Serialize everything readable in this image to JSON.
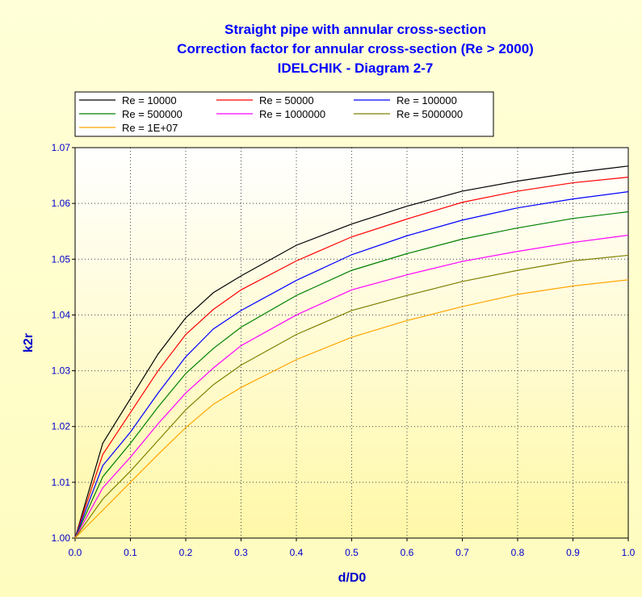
{
  "chart_data": {
    "type": "line",
    "title": [
      "Straight pipe with annular cross-section",
      "Correction factor for annular cross-section (Re > 2000)",
      "IDELCHIK - Diagram 2-7"
    ],
    "xlabel": "d/D0",
    "ylabel": "k2r",
    "x": [
      0,
      0.05,
      0.1,
      0.15,
      0.2,
      0.25,
      0.3,
      0.4,
      0.5,
      0.6,
      0.7,
      0.8,
      0.9,
      1.0
    ],
    "series": [
      {
        "name": "Re = 10000",
        "color": "#000000",
        "values": [
          1.0,
          1.017,
          1.025,
          1.033,
          1.0395,
          1.044,
          1.047,
          1.0525,
          1.0563,
          1.0595,
          1.0622,
          1.064,
          1.0655,
          1.0667
        ]
      },
      {
        "name": "Re = 50000",
        "color": "#ff0000",
        "values": [
          1.0,
          1.015,
          1.0225,
          1.03,
          1.0365,
          1.041,
          1.0445,
          1.0497,
          1.054,
          1.0572,
          1.0602,
          1.0622,
          1.0637,
          1.0647
        ]
      },
      {
        "name": "Re = 100000",
        "color": "#0000ff",
        "values": [
          1.0,
          1.013,
          1.019,
          1.026,
          1.0325,
          1.0375,
          1.0408,
          1.0462,
          1.0508,
          1.0542,
          1.057,
          1.0592,
          1.0608,
          1.0621
        ]
      },
      {
        "name": "Re = 500000",
        "color": "#008000",
        "values": [
          1.0,
          1.011,
          1.017,
          1.0235,
          1.0295,
          1.034,
          1.0378,
          1.0435,
          1.048,
          1.051,
          1.0536,
          1.0556,
          1.0573,
          1.0585
        ]
      },
      {
        "name": "Re = 1000000",
        "color": "#ff00ff",
        "values": [
          1.0,
          1.009,
          1.0145,
          1.0205,
          1.026,
          1.0305,
          1.0345,
          1.04,
          1.0445,
          1.0472,
          1.0496,
          1.0514,
          1.053,
          1.0543
        ]
      },
      {
        "name": "Re = 5000000",
        "color": "#808000",
        "values": [
          1.0,
          1.007,
          1.012,
          1.0175,
          1.023,
          1.0275,
          1.031,
          1.0365,
          1.0408,
          1.0435,
          1.046,
          1.048,
          1.0497,
          1.0507
        ]
      },
      {
        "name": "Re = 1E+07",
        "color": "#ffa500",
        "values": [
          1.0,
          1.005,
          1.01,
          1.015,
          1.0198,
          1.024,
          1.027,
          1.032,
          1.036,
          1.039,
          1.0415,
          1.0437,
          1.0452,
          1.0463
        ]
      }
    ],
    "xlim": [
      0,
      1
    ],
    "ylim": [
      1.0,
      1.07
    ],
    "xticks": [
      {
        "value": 0,
        "label": "0.0"
      },
      0.1,
      0.2,
      0.3,
      0.4,
      0.5,
      0.6,
      0.7,
      0.8,
      0.9,
      {
        "value": 1,
        "label": "1.0"
      }
    ],
    "yticks": [
      {
        "value": 1.0,
        "label": "1.00"
      },
      1.01,
      1.02,
      1.03,
      1.04,
      1.05,
      1.06,
      1.07
    ],
    "grid": true
  }
}
